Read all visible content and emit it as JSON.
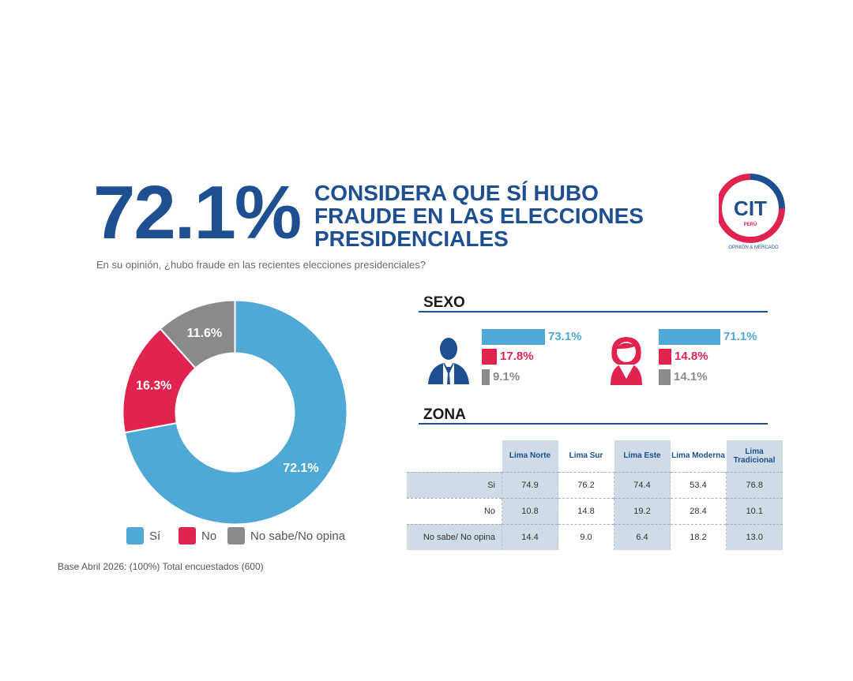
{
  "header": {
    "big_value": "72.1%",
    "headline_lines": [
      "CONSIDERA QUE SÍ HUBO",
      "FRAUDE EN LAS ELECCIONES",
      "PRESIDENCIALES"
    ],
    "question": "En su opinión, ¿hubo fraude en las recientes elecciones presidenciales?"
  },
  "logo": {
    "name": "CIT",
    "sub": "PERÚ",
    "tagline": "OPINIÓN & MERCADO"
  },
  "colors": {
    "si": "#4fa8d5",
    "no": "#e0244f",
    "ns": "#8a8a8a",
    "navy": "#1d4f91",
    "table_highlight": "#cfdbe7"
  },
  "legend": [
    {
      "label": "Sí",
      "color": "#4fa8d5"
    },
    {
      "label": "No",
      "color": "#e0244f"
    },
    {
      "label": "No sabe/No opina",
      "color": "#8a8a8a"
    }
  ],
  "base_note": "Base Abril 2026: (100%) Total encuestados (600)",
  "sexo": {
    "title": "SEXO",
    "male": {
      "icon": "man-icon",
      "si": "73.1%",
      "no": "17.8%",
      "ns": "9.1%"
    },
    "female": {
      "icon": "woman-icon",
      "si": "71.1%",
      "no": "14.8%",
      "ns": "14.1%"
    }
  },
  "zona": {
    "title": "ZONA",
    "columns": [
      "Lima Norte",
      "Lima Sur",
      "Lima Este",
      "Lima Moderna",
      "Lima Tradicional"
    ],
    "rows": [
      {
        "label": "Si",
        "values": [
          "74.9",
          "76.2",
          "74.4",
          "53.4",
          "76.8"
        ]
      },
      {
        "label": "No",
        "values": [
          "10.8",
          "14.8",
          "19.2",
          "28.4",
          "10.1"
        ]
      },
      {
        "label": "No sabe/ No opina",
        "values": [
          "14.4",
          "9.0",
          "6.4",
          "18.2",
          "13.0"
        ]
      }
    ]
  },
  "chart_data": [
    {
      "type": "pie",
      "categories": [
        "Sí",
        "No",
        "No sabe/No opina"
      ],
      "values": [
        72.1,
        16.3,
        11.6
      ],
      "data_labels": [
        "72.1%",
        "16.3%",
        "11.6%"
      ],
      "colors": [
        "#4fa8d5",
        "#e0244f",
        "#8a8a8a"
      ],
      "donut": true,
      "legend_position": "bottom"
    },
    {
      "type": "bar",
      "categories": [
        "Sí",
        "No",
        "No sabe/No opina"
      ],
      "series": [
        {
          "values": [
            73.1,
            17.8,
            9.1
          ]
        },
        {
          "values": [
            71.1,
            14.8,
            14.1
          ]
        }
      ],
      "orientation": "horizontal"
    }
  ]
}
